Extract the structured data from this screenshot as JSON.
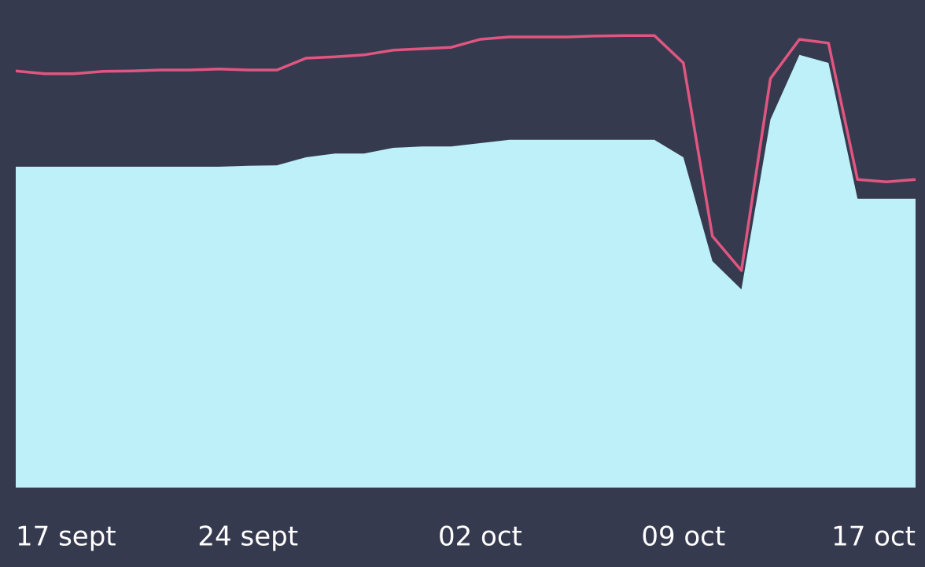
{
  "chart_data": {
    "type": "area-line",
    "categories": [
      "17 sept",
      null,
      null,
      null,
      null,
      null,
      null,
      null,
      "24 sept",
      null,
      null,
      null,
      null,
      null,
      null,
      null,
      "02 oct",
      null,
      null,
      null,
      null,
      null,
      null,
      "09 oct",
      null,
      null,
      null,
      null,
      null,
      null,
      null,
      "17 oct"
    ],
    "series": [
      {
        "type": "area",
        "color": "#bdf0f8",
        "values": [
          68,
          68,
          68,
          68,
          68,
          68,
          68,
          68,
          68.2,
          68.3,
          70,
          70.8,
          70.8,
          72,
          72.3,
          72.3,
          73,
          73.7,
          73.7,
          73.7,
          73.7,
          73.7,
          73.7,
          70,
          48,
          42,
          78,
          91.7,
          90,
          61.2,
          61.2,
          61.2
        ]
      },
      {
        "type": "line",
        "color": "#e05680",
        "values": [
          88.3,
          87.7,
          87.7,
          88.2,
          88.3,
          88.5,
          88.5,
          88.7,
          88.5,
          88.5,
          91,
          91.3,
          91.7,
          92.7,
          93,
          93.3,
          95,
          95.5,
          95.5,
          95.5,
          95.7,
          95.8,
          95.8,
          90,
          53.3,
          46,
          86.7,
          95,
          94.2,
          65.3,
          64.8,
          65.3
        ]
      }
    ],
    "ylim": [
      0,
      100
    ]
  }
}
